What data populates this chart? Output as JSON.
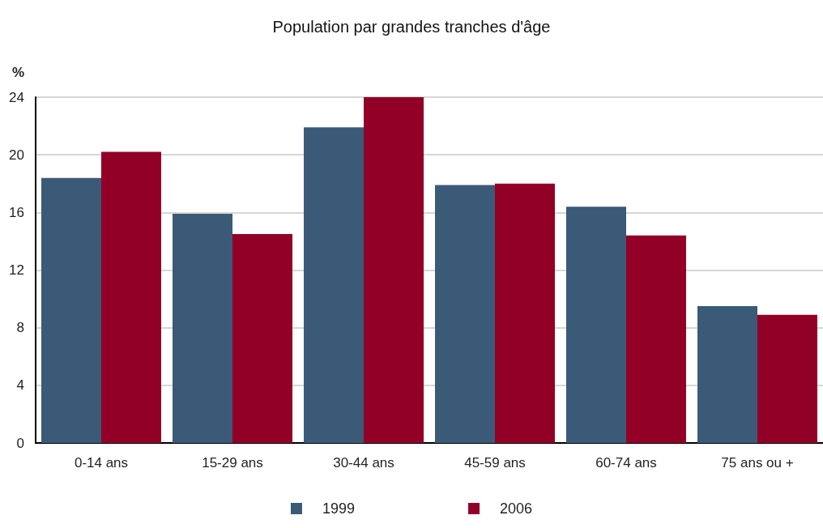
{
  "chart_data": {
    "type": "bar",
    "title": "Population par grandes tranches d'âge",
    "ylabel": "%",
    "categories": [
      "0-14 ans",
      "15-29 ans",
      "30-44 ans",
      "45-59 ans",
      "60-74 ans",
      "75 ans ou +"
    ],
    "series": [
      {
        "name": "1999",
        "color": "#3b5a78",
        "values": [
          18.4,
          15.9,
          21.9,
          17.9,
          16.4,
          9.5
        ]
      },
      {
        "name": "2006",
        "color": "#920027",
        "values": [
          20.2,
          14.5,
          24.0,
          18.0,
          14.4,
          8.9
        ]
      }
    ],
    "ylim": [
      0,
      24
    ],
    "yticks": [
      0,
      4,
      8,
      12,
      16,
      20,
      24
    ],
    "grid": "y",
    "legend": "bottom"
  }
}
